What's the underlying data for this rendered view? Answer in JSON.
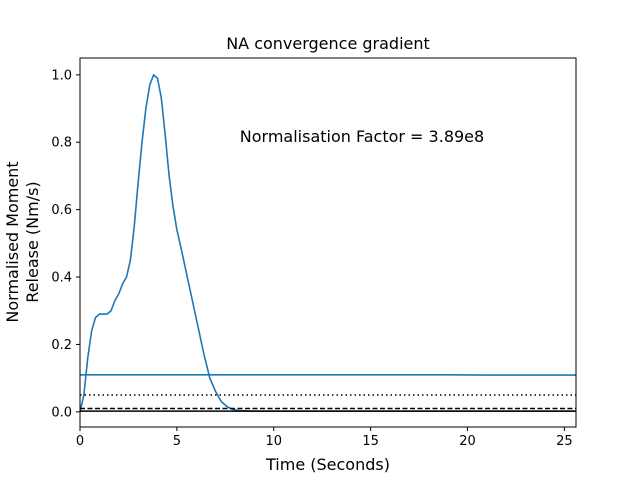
{
  "chart_data": {
    "type": "line",
    "title": "NA convergence gradient",
    "xlabel": "Time (Seconds)",
    "ylabel_lines": [
      "Normalised Moment",
      "Release (Nm/s)"
    ],
    "xlim": [
      0,
      25.6
    ],
    "ylim": [
      -0.045,
      1.05
    ],
    "xticks": [
      0,
      5,
      10,
      15,
      20,
      25
    ],
    "yticks": [
      0.0,
      0.2,
      0.4,
      0.6,
      0.8,
      1.0
    ],
    "xtick_labels": [
      "0",
      "5",
      "10",
      "15",
      "20",
      "25"
    ],
    "ytick_labels": [
      "0.0",
      "0.2",
      "0.4",
      "0.6",
      "0.8",
      "1.0"
    ],
    "annotation": "Normalisation Factor = 3.89e8",
    "grid": false,
    "colors": {
      "series": "#1f77b4",
      "reference": "#000000"
    },
    "series": [
      {
        "style": "solid",
        "x": [
          0.0,
          0.2,
          0.4,
          0.6,
          0.8,
          1.0,
          1.2,
          1.4,
          1.6,
          1.8,
          2.0,
          2.2,
          2.4,
          2.6,
          2.8,
          3.0,
          3.2,
          3.4,
          3.6,
          3.8,
          4.0,
          4.2,
          4.4,
          4.6,
          4.8,
          5.0,
          5.2,
          5.5,
          5.8,
          6.1,
          6.4,
          6.7,
          7.0,
          7.3,
          7.6,
          7.9,
          8.2,
          8.5,
          9.0,
          10.0,
          12.0,
          15.0,
          20.0,
          25.6
        ],
        "y": [
          0.0,
          0.05,
          0.16,
          0.24,
          0.28,
          0.29,
          0.29,
          0.29,
          0.3,
          0.33,
          0.35,
          0.38,
          0.4,
          0.45,
          0.55,
          0.68,
          0.8,
          0.9,
          0.97,
          1.0,
          0.99,
          0.93,
          0.82,
          0.7,
          0.61,
          0.54,
          0.49,
          0.41,
          0.33,
          0.25,
          0.17,
          0.1,
          0.06,
          0.03,
          0.015,
          0.007,
          0.004,
          0.003,
          0.002,
          0.002,
          0.002,
          0.002,
          0.002,
          0.002
        ]
      },
      {
        "style": "solid",
        "x": [
          0.0,
          5.0,
          10.0,
          15.0,
          19.0,
          21.0,
          25.6
        ],
        "y": [
          0.11,
          0.11,
          0.11,
          0.11,
          0.11,
          0.109,
          0.109
        ]
      },
      {
        "style": "dotted",
        "x": [
          0.0,
          25.6
        ],
        "y": [
          0.05,
          0.05
        ]
      },
      {
        "style": "dashed",
        "x": [
          0.0,
          25.6
        ],
        "y": [
          0.01,
          0.01
        ]
      },
      {
        "style": "solid-black",
        "x": [
          0.0,
          25.6
        ],
        "y": [
          0.002,
          0.002
        ]
      }
    ]
  }
}
